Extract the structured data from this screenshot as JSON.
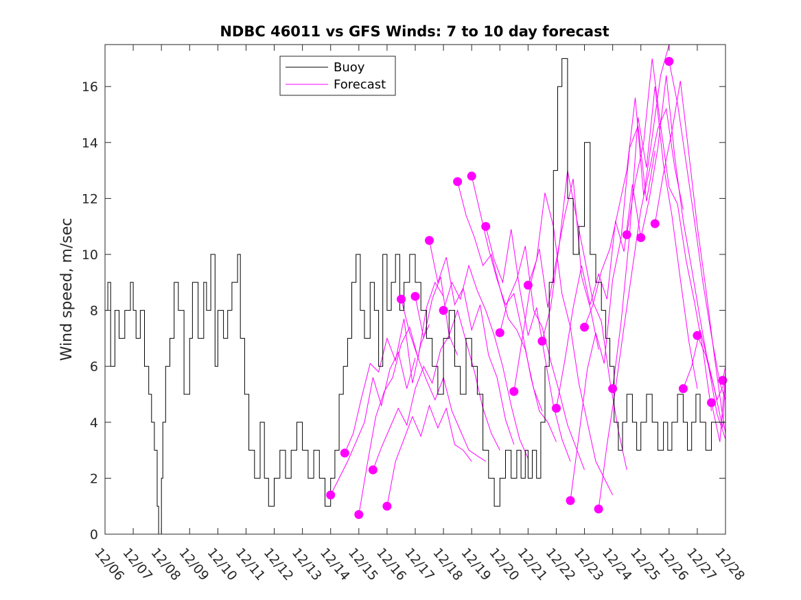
{
  "chart_data": {
    "type": "line",
    "title": "NDBC 46011 vs GFS Winds: 7 to 10 day forecast",
    "xlabel": "",
    "ylabel": "Wind speed, m/sec",
    "xlim": [
      0,
      22
    ],
    "ylim": [
      0,
      17.5
    ],
    "x_tick_labels": [
      "12/06",
      "12/07",
      "12/08",
      "12/09",
      "12/10",
      "12/11",
      "12/12",
      "12/13",
      "12/14",
      "12/15",
      "12/16",
      "12/17",
      "12/18",
      "12/19",
      "12/20",
      "12/21",
      "12/22",
      "12/23",
      "12/24",
      "12/25",
      "12/26",
      "12/27",
      "12/28"
    ],
    "y_ticks": [
      0,
      2,
      4,
      6,
      8,
      10,
      12,
      14,
      16
    ],
    "y_tick_labels": [
      "0",
      "2",
      "4",
      "6",
      "8",
      "10",
      "12",
      "14",
      "16"
    ],
    "legend": {
      "position": "top-center",
      "entries": [
        {
          "label": "Buoy",
          "color": "#000000"
        },
        {
          "label": "Forecast",
          "color": "#ff00ff"
        }
      ]
    },
    "colors": {
      "buoy": "#000000",
      "forecast": "#ff00ff",
      "axis": "#262626"
    },
    "buoy": {
      "name": "Buoy",
      "x": [
        0,
        0.1,
        0.2,
        0.35,
        0.5,
        0.7,
        0.9,
        1.0,
        1.1,
        1.25,
        1.4,
        1.55,
        1.65,
        1.75,
        1.85,
        1.9,
        2.0,
        2.05,
        2.15,
        2.3,
        2.45,
        2.6,
        2.8,
        3.0,
        3.1,
        3.3,
        3.5,
        3.6,
        3.75,
        3.9,
        4.0,
        4.2,
        4.35,
        4.5,
        4.7,
        4.8,
        4.95,
        5.1,
        5.3,
        5.5,
        5.65,
        5.8,
        6.0,
        6.2,
        6.4,
        6.6,
        6.8,
        7.0,
        7.2,
        7.4,
        7.6,
        7.8,
        8.0,
        8.15,
        8.3,
        8.45,
        8.6,
        8.75,
        8.9,
        9.05,
        9.2,
        9.4,
        9.55,
        9.7,
        9.85,
        10.0,
        10.15,
        10.3,
        10.45,
        10.6,
        10.8,
        11.0,
        11.2,
        11.4,
        11.6,
        11.8,
        12.0,
        12.2,
        12.4,
        12.6,
        12.8,
        13.0,
        13.2,
        13.4,
        13.6,
        13.8,
        14.0,
        14.2,
        14.4,
        14.6,
        14.75,
        14.9,
        15.0,
        15.15,
        15.3,
        15.45,
        15.6,
        15.75,
        15.9,
        16.05,
        16.2,
        16.4,
        16.6,
        16.8,
        17.0,
        17.2,
        17.4,
        17.6,
        17.75,
        17.9,
        18.05,
        18.2,
        18.35,
        18.5,
        18.7,
        18.85,
        19.0,
        19.2,
        19.4,
        19.6,
        19.8,
        19.95,
        20.1,
        20.3,
        20.5,
        20.65,
        20.8,
        20.95,
        21.1,
        21.3,
        21.5
      ],
      "values": [
        8,
        9,
        6,
        8,
        7,
        8,
        9,
        8,
        7,
        8,
        6,
        5,
        4,
        3,
        1,
        0,
        2,
        4,
        6,
        7,
        9,
        8,
        5,
        7,
        9,
        7,
        9,
        8,
        10,
        6,
        8,
        7,
        8,
        9,
        10,
        7,
        5,
        3,
        2,
        4,
        2,
        1,
        2,
        3,
        2,
        3,
        4,
        3,
        2,
        3,
        2,
        1,
        2,
        3,
        5,
        6,
        7,
        9,
        10,
        8,
        7,
        9,
        8,
        6,
        10,
        8,
        9,
        10,
        8,
        9,
        10,
        9,
        8,
        7,
        6,
        5,
        7,
        8,
        6,
        5,
        7,
        6,
        5,
        3,
        2,
        1,
        2,
        3,
        2,
        3,
        2,
        3,
        2,
        3,
        2,
        4,
        6,
        9,
        13,
        16,
        17,
        12,
        10,
        11,
        14,
        10,
        9,
        8,
        7,
        6,
        4,
        3,
        4,
        5,
        4,
        3,
        4,
        5,
        4,
        3,
        4,
        3,
        4,
        5,
        4,
        3,
        4,
        5,
        4,
        3,
        4
      ],
      "step": true
    },
    "forecast_series": [
      {
        "name": "Forecast",
        "x": [
          8.0,
          8.3,
          8.6,
          8.9,
          9.2,
          9.5,
          9.8,
          10.1,
          10.4,
          10.7,
          11.0
        ],
        "values": [
          1.4,
          2.0,
          2.6,
          3.3,
          4.0,
          5.6,
          4.6,
          5.9,
          6.5,
          5.2,
          6.3
        ]
      },
      {
        "name": "Forecast",
        "x": [
          8.5,
          8.8,
          9.1,
          9.4,
          9.7,
          10.0,
          10.3,
          10.6,
          10.9,
          11.2,
          11.5
        ],
        "values": [
          2.9,
          3.6,
          4.9,
          6.1,
          5.8,
          7.0,
          6.2,
          7.7,
          5.4,
          6.8,
          7.5
        ]
      },
      {
        "name": "Forecast",
        "x": [
          9.0,
          9.3,
          9.6,
          9.9,
          10.2,
          10.5,
          10.8,
          11.1,
          11.4,
          11.7,
          12.0
        ],
        "values": [
          0.7,
          2.5,
          4.2,
          5.1,
          5.6,
          6.8,
          7.4,
          6.3,
          8.1,
          9.0,
          8.5
        ]
      },
      {
        "name": "Forecast",
        "x": [
          9.5,
          9.8,
          10.1,
          10.4,
          10.7,
          11.0,
          11.3,
          11.6,
          11.9,
          12.2,
          12.5
        ],
        "values": [
          2.3,
          3.1,
          3.8,
          4.5,
          3.9,
          5.2,
          6.0,
          5.4,
          6.6,
          7.1,
          6.4
        ]
      },
      {
        "name": "Forecast",
        "x": [
          10.0,
          10.3,
          10.6,
          10.9,
          11.2,
          11.5,
          11.8,
          12.1,
          12.4,
          12.7,
          13.0
        ],
        "values": [
          1.0,
          2.6,
          3.4,
          4.2,
          3.5,
          4.6,
          3.8,
          4.5,
          3.2,
          3.0,
          2.6
        ]
      },
      {
        "name": "Forecast",
        "x": [
          10.5,
          10.8,
          11.1,
          11.4,
          11.7,
          12.0,
          12.3,
          12.6,
          12.9,
          13.2,
          13.5
        ],
        "values": [
          8.4,
          7.2,
          6.3,
          5.5,
          4.8,
          5.6,
          4.4,
          3.7,
          3.0,
          2.8,
          2.6
        ]
      },
      {
        "name": "Forecast",
        "x": [
          11.0,
          11.3,
          11.6,
          11.9,
          12.2,
          12.5,
          12.8,
          13.1,
          13.4,
          13.7,
          14.0
        ],
        "values": [
          8.5,
          7.0,
          8.4,
          9.2,
          7.1,
          8.0,
          6.9,
          5.8,
          4.5,
          3.6,
          3.0
        ]
      },
      {
        "name": "Forecast",
        "x": [
          11.5,
          11.8,
          12.1,
          12.4,
          12.7,
          13.0,
          13.3,
          13.6,
          13.9,
          14.2,
          14.5
        ],
        "values": [
          10.5,
          9.0,
          9.9,
          8.2,
          8.8,
          7.3,
          8.2,
          6.4,
          5.6,
          4.1,
          3.2
        ]
      },
      {
        "name": "Forecast",
        "x": [
          12.0,
          12.3,
          12.6,
          12.9,
          13.2,
          13.5,
          13.8,
          14.1,
          14.4,
          14.7,
          15.0
        ],
        "values": [
          8.0,
          9.0,
          8.4,
          9.6,
          8.7,
          8.0,
          7.1,
          6.0,
          4.6,
          3.4,
          2.7
        ]
      },
      {
        "name": "Forecast",
        "x": [
          12.5,
          12.8,
          13.1,
          13.4,
          13.7,
          14.0,
          14.3,
          14.6,
          14.9,
          15.2,
          15.5
        ],
        "values": [
          12.6,
          11.4,
          10.6,
          9.6,
          10.0,
          8.8,
          7.7,
          7.3,
          6.6,
          5.2,
          4.4
        ]
      },
      {
        "name": "Forecast",
        "x": [
          13.0,
          13.3,
          13.6,
          13.9,
          14.2,
          14.5,
          14.8,
          15.1,
          15.4,
          15.7,
          16.0
        ],
        "values": [
          12.8,
          11.5,
          10.2,
          9.1,
          8.2,
          8.6,
          7.2,
          5.6,
          4.4,
          4.0,
          3.3
        ]
      },
      {
        "name": "Forecast",
        "x": [
          13.5,
          13.8,
          14.1,
          14.4,
          14.7,
          15.0,
          15.3,
          15.6,
          15.9,
          16.2,
          16.5
        ],
        "values": [
          11.0,
          9.8,
          9.0,
          10.9,
          8.8,
          7.1,
          8.1,
          6.3,
          4.6,
          3.4,
          2.6
        ]
      },
      {
        "name": "Forecast",
        "x": [
          14.0,
          14.3,
          14.6,
          14.9,
          15.2,
          15.5,
          15.8,
          16.1,
          16.4,
          16.7,
          17.0
        ],
        "values": [
          7.2,
          8.4,
          9.1,
          10.3,
          8.0,
          7.4,
          6.2,
          5.1,
          3.9,
          3.1,
          2.3
        ]
      },
      {
        "name": "Forecast",
        "x": [
          14.5,
          14.8,
          15.1,
          15.4,
          15.7,
          16.0,
          16.3,
          16.6,
          16.9,
          17.2,
          17.5
        ],
        "values": [
          5.1,
          7.0,
          9.0,
          10.2,
          8.1,
          9.8,
          11.4,
          12.7,
          9.2,
          8.1,
          6.6
        ]
      },
      {
        "name": "Forecast",
        "x": [
          15.0,
          15.3,
          15.6,
          15.9,
          16.2,
          16.5,
          16.8,
          17.1,
          17.4,
          17.7,
          18.0
        ],
        "values": [
          8.9,
          9.8,
          12.2,
          11.0,
          8.6,
          7.4,
          5.4,
          4.0,
          2.6,
          2.0,
          1.4
        ]
      },
      {
        "name": "Forecast",
        "x": [
          15.5,
          15.8,
          16.1,
          16.4,
          16.7,
          17.0,
          17.3,
          17.6,
          17.9,
          18.2,
          18.5
        ],
        "values": [
          6.9,
          8.1,
          10.3,
          13.0,
          11.4,
          9.9,
          8.3,
          7.6,
          5.5,
          3.7,
          2.3
        ]
      },
      {
        "name": "Forecast",
        "x": [
          16.0,
          16.3,
          16.6,
          16.9,
          17.2,
          17.5,
          17.8,
          18.1,
          18.4,
          18.7,
          19.0
        ],
        "values": [
          4.5,
          6.2,
          8.1,
          9.6,
          8.2,
          9.3,
          8.4,
          11.2,
          10.1,
          12.5,
          10.6
        ]
      },
      {
        "name": "Forecast",
        "x": [
          16.5,
          16.8,
          17.1,
          17.4,
          17.7,
          18.0,
          18.3,
          18.6,
          18.9,
          19.2,
          19.5
        ],
        "values": [
          1.2,
          3.5,
          5.9,
          7.2,
          6.1,
          9.1,
          10.6,
          13.8,
          14.6,
          11.9,
          13.7
        ]
      },
      {
        "name": "Forecast",
        "x": [
          17.0,
          17.3,
          17.6,
          17.9,
          18.2,
          18.5,
          18.8,
          19.1,
          19.4,
          19.7,
          20.0
        ],
        "values": [
          7.4,
          8.2,
          9.4,
          10.2,
          11.6,
          13.0,
          15.6,
          12.1,
          14.2,
          16.4,
          17.5
        ]
      },
      {
        "name": "Forecast",
        "x": [
          17.5,
          17.8,
          18.1,
          18.4,
          18.7,
          19.0,
          19.3,
          19.6,
          19.9,
          20.2,
          20.5
        ],
        "values": [
          0.9,
          3.2,
          5.2,
          7.4,
          9.5,
          11.6,
          13.0,
          14.5,
          15.2,
          13.1,
          11.6
        ]
      },
      {
        "name": "Forecast",
        "x": [
          18.0,
          18.3,
          18.6,
          18.9,
          19.2,
          19.5,
          19.8,
          20.1,
          20.4,
          20.7,
          21.0
        ],
        "values": [
          5.2,
          7.6,
          10.7,
          14.9,
          13.1,
          16.0,
          13.2,
          11.4,
          9.1,
          6.9,
          5.2
        ]
      },
      {
        "name": "Forecast",
        "x": [
          18.5,
          18.8,
          19.1,
          19.4,
          19.7,
          20.0,
          20.3,
          20.6,
          20.9,
          21.2,
          21.5
        ],
        "values": [
          10.7,
          12.6,
          14.0,
          17.0,
          14.6,
          12.4,
          11.8,
          9.8,
          8.3,
          6.6,
          4.4
        ]
      },
      {
        "name": "Forecast",
        "x": [
          19.0,
          19.3,
          19.6,
          19.9,
          20.2,
          20.5,
          20.8,
          21.1,
          21.4,
          21.7,
          22.0
        ],
        "values": [
          10.6,
          12.0,
          13.8,
          16.4,
          13.5,
          11.2,
          9.5,
          7.7,
          6.0,
          4.3,
          3.4
        ]
      },
      {
        "name": "Forecast",
        "x": [
          19.5,
          19.8,
          20.1,
          20.4,
          20.7,
          21.0,
          21.3,
          21.6,
          21.9,
          22.0
        ],
        "values": [
          11.1,
          12.9,
          14.4,
          16.2,
          13.6,
          11.0,
          8.8,
          6.4,
          4.2,
          3.6
        ]
      },
      {
        "name": "Forecast",
        "x": [
          20.0,
          20.3,
          20.6,
          20.9,
          21.2,
          21.5,
          21.8,
          22.0
        ],
        "values": [
          16.9,
          15.4,
          13.3,
          11.2,
          9.0,
          7.1,
          5.4,
          4.8
        ]
      },
      {
        "name": "Forecast",
        "x": [
          20.5,
          20.8,
          21.1,
          21.4,
          21.7,
          22.0
        ],
        "values": [
          5.2,
          6.0,
          7.3,
          6.1,
          4.8,
          5.5
        ]
      },
      {
        "name": "Forecast",
        "x": [
          21.0,
          21.3,
          21.6,
          21.9,
          22.0
        ],
        "values": [
          7.1,
          6.4,
          5.2,
          3.8,
          5.5
        ]
      },
      {
        "name": "Forecast",
        "x": [
          21.5,
          21.8,
          22.0
        ],
        "values": [
          4.7,
          3.3,
          5.8
        ]
      },
      {
        "name": "Forecast",
        "x": [
          21.9,
          22.0
        ],
        "values": [
          5.5,
          6.0
        ]
      }
    ]
  }
}
